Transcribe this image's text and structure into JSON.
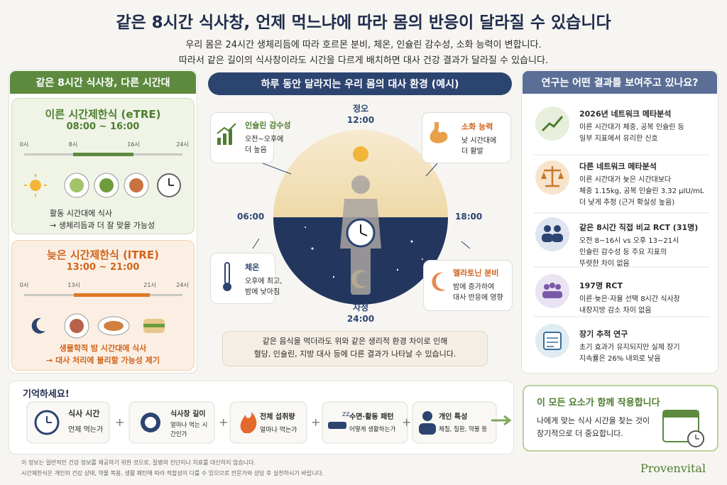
{
  "header": {
    "title": "같은 8시간 식사창, 언제 먹느냐에 따라 몸의 반응이 달라질 수 있습니다",
    "subtitle": [
      "우리 몸은 24시간 생체리듬에 따라 호르몬 분비, 체온, 인슐린 감수성, 소화 능력이 변합니다.",
      "따라서 같은 길이의 식사창이라도 시간을 다르게 배치하면 대사 건강 결과가 달라질 수 있습니다."
    ]
  },
  "left": {
    "heading": "같은 8시간 식사창, 다른 시간대",
    "early": {
      "title": "이른 시간제한식 (eTRE)",
      "time": "08:00 ~ 16:00",
      "ticks": [
        "0시",
        "8시",
        "16시",
        "24시"
      ],
      "notes": [
        "활동 시간대에 식사",
        "→ 생체리듬과 더 잘 맞을 가능성"
      ]
    },
    "late": {
      "title": "늦은 시간제한식 (lTRE)",
      "time": "13:00 ~ 21:00",
      "ticks": [
        "0시",
        "13시",
        "21시",
        "24시"
      ],
      "notes": [
        "생물학적 밤 시간대에 식사",
        "→ 대사 처리에 불리할 가능성 제기"
      ]
    }
  },
  "center": {
    "heading": "하루 동안 달라지는 우리 몸의 대사 환경 (예시)",
    "clock": {
      "top": [
        "정오",
        "12:00"
      ],
      "left": "06:00",
      "right": "18:00",
      "bottom": [
        "자정",
        "24:00"
      ]
    },
    "callouts": [
      {
        "title": "인슐린 감수성",
        "lines": [
          "오전~오후에",
          "더 높음"
        ]
      },
      {
        "title": "소화 능력",
        "lines": [
          "낮 시간대에",
          "더 활발"
        ]
      },
      {
        "title": "체온",
        "lines": [
          "오후에 최고,",
          "밤에 낮아짐"
        ]
      },
      {
        "title": "멜라토닌 분비",
        "lines": [
          "밤에 증가하여",
          "대사 반응에 영향"
        ]
      }
    ],
    "note": [
      "같은 음식을 먹더라도 위와 같은 생리적 환경 차이로 인해",
      "혈당, 인슐린, 지방 대사 등에 다른 결과가 나타날 수 있습니다."
    ]
  },
  "right": {
    "heading": "연구는 어떤 결과를 보여주고 있나요?",
    "items": [
      {
        "title": "2026년 네트워크 메타분석",
        "lines": [
          "이른 시간대가 체중, 공복 인슐린 등",
          "일부 지표에서 유리한 신호"
        ]
      },
      {
        "title": "다른 네트워크 메타분석",
        "lines": [
          "이른 시간대가 늦은 시간대보다",
          "체중 1.15kg, 공복 인슐린 3.32 μIU/mL",
          "더 낮게 추정 (근거 확실성 높음)"
        ]
      },
      {
        "title": "같은 8시간 직접 비교 RCT (31명)",
        "lines": [
          "오전 8~16시 vs 오후 13~21시",
          "인슐린 감수성 등 주요 지표의",
          "뚜렷한 차이 없음"
        ]
      },
      {
        "title": "197명 RCT",
        "lines": [
          "이른·늦은·자율 선택 8시간 식사창",
          "내장지방 감소 차이 없음"
        ]
      },
      {
        "title": "장기 추적 연구",
        "lines": [
          "초기 효과가 유지되지만 실제 장기",
          "지속률은 26% 내외로 낮음"
        ]
      }
    ]
  },
  "bottom": {
    "remember": "기억하세요!",
    "factors": [
      {
        "title": "식사 시간",
        "desc": [
          "언제 먹는가"
        ]
      },
      {
        "title": "식사창 길이",
        "desc": [
          "얼마나 먹는 시",
          "간인가"
        ]
      },
      {
        "title": "전체 섭취량",
        "desc": [
          "얼마나 먹는가"
        ]
      },
      {
        "title": "수면·활동 패턴",
        "desc": [
          "어떻게 생활하는가"
        ]
      },
      {
        "title": "개인 특성",
        "desc": [
          "체질, 질환, 약물 등"
        ]
      }
    ],
    "conclusion": {
      "title": "이 모든 요소가 함께 작용합니다",
      "lines": [
        "나에게 맞는 식사 시간을 찾는 것이",
        "장기적으로 더 중요합니다."
      ]
    },
    "brand": "Provenvital"
  },
  "footer": [
    "이 정보는 일반적인 건강 정보를 제공하기 위한 것으로, 질병의 진단이나 치료를 대신하지 않습니다.",
    "시간제한식은 개인의 건강 상태, 약물 복용, 생활 패턴에 따라 적합성이 다를 수 있으므로 전문가와 상담 후 실천하시기 바랍니다."
  ]
}
